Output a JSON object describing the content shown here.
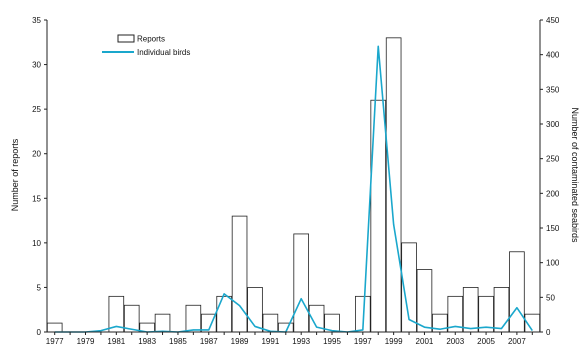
{
  "chart_data": {
    "type": "bar",
    "years": [
      1977,
      1978,
      1979,
      1980,
      1981,
      1982,
      1983,
      1984,
      1985,
      1986,
      1987,
      1988,
      1989,
      1990,
      1991,
      1992,
      1993,
      1994,
      1995,
      1996,
      1997,
      1998,
      1999,
      2000,
      2001,
      2002,
      2003,
      2004,
      2005,
      2006,
      2007,
      2008
    ],
    "x_tick_labels": [
      "1977",
      "1979",
      "1981",
      "1983",
      "1985",
      "1987",
      "1989",
      "1991",
      "1993",
      "1995",
      "1997",
      "1999",
      "2001",
      "2003",
      "2005",
      "2007"
    ],
    "series": [
      {
        "name": "Reports",
        "kind": "bar",
        "axis": "left",
        "values": [
          1,
          0,
          0,
          0,
          4,
          3,
          1,
          2,
          0,
          3,
          2,
          4,
          13,
          5,
          2,
          1,
          11,
          3,
          2,
          0,
          4,
          26,
          33,
          10,
          7,
          2,
          4,
          5,
          4,
          5,
          9,
          2
        ]
      },
      {
        "name": "Individual birds",
        "kind": "line",
        "axis": "right",
        "color": "#1aa7cc",
        "values": [
          0,
          0,
          0,
          2,
          8,
          4,
          0,
          1,
          0,
          3,
          3,
          55,
          38,
          8,
          1,
          0,
          48,
          7,
          2,
          0,
          3,
          412,
          155,
          18,
          7,
          4,
          8,
          5,
          7,
          5,
          35,
          2
        ]
      }
    ],
    "ylabel": "Number of reports",
    "ylabel_right": "Number of contaminated seabirds",
    "ylim": [
      0,
      35
    ],
    "yticks": [
      0,
      5,
      10,
      15,
      20,
      25,
      30,
      35
    ],
    "ylim_right": [
      0,
      450
    ],
    "yticks_right": [
      0,
      50,
      100,
      150,
      200,
      250,
      300,
      350,
      400,
      450
    ],
    "legend_position": "top-left",
    "grid": false,
    "colors": {
      "bar_edge": "#222222",
      "bar_fill": "#ffffff",
      "line": "#1aa7cc",
      "axis": "#222222"
    }
  }
}
